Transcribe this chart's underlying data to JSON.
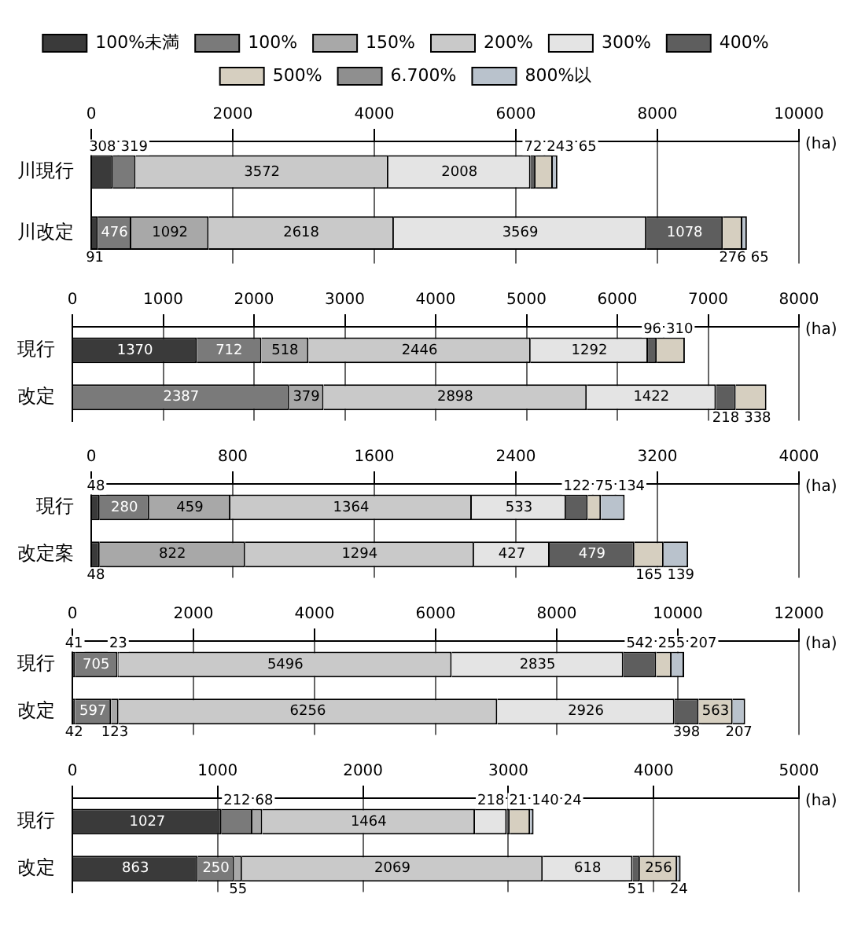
{
  "chart_data": [
    {
      "type": "bar",
      "orientation": "horizontal",
      "stacked": true,
      "legend": "top",
      "grid": "x",
      "data_labels": true,
      "xlabel": "(ha)",
      "categories": [
        "川現行",
        "川改定"
      ],
      "xlim": [
        0,
        10000
      ],
      "xticks": [
        0,
        2000,
        4000,
        6000,
        8000,
        10000
      ],
      "series": [
        {
          "name": "100%未満",
          "color": "#3a3a3a",
          "values": [
            308,
            91
          ]
        },
        {
          "name": "100%",
          "color": "#7a7a7a",
          "values": [
            319,
            476
          ]
        },
        {
          "name": "150%",
          "color": "#a8a8a8",
          "values": [
            null,
            1092
          ]
        },
        {
          "name": "200%",
          "color": "#c9c9c9",
          "values": [
            3572,
            2618
          ]
        },
        {
          "name": "300%",
          "color": "#e4e4e4",
          "values": [
            2008,
            3569
          ]
        },
        {
          "name": "400%",
          "color": "#5e5e5e",
          "values": [
            72,
            1078
          ]
        },
        {
          "name": "500%",
          "color": "#d6cfc0",
          "values": [
            243,
            276
          ]
        },
        {
          "name": "6.700%",
          "color": "#8f8f8f",
          "values": [
            null,
            null
          ]
        },
        {
          "name": "800%以",
          "color": "#b9c2cc",
          "values": [
            65,
            65
          ]
        }
      ]
    },
    {
      "type": "bar",
      "orientation": "horizontal",
      "stacked": true,
      "grid": "x",
      "data_labels": true,
      "xlabel": "(ha)",
      "categories": [
        "現行",
        "改定"
      ],
      "xlim": [
        0,
        8000
      ],
      "xticks": [
        0,
        1000,
        2000,
        3000,
        4000,
        5000,
        6000,
        7000,
        8000
      ],
      "series": [
        {
          "color": "#3a3a3a",
          "values": [
            1370,
            null
          ]
        },
        {
          "color": "#7a7a7a",
          "values": [
            712,
            2387
          ]
        },
        {
          "color": "#a8a8a8",
          "values": [
            518,
            379
          ]
        },
        {
          "color": "#c9c9c9",
          "values": [
            2446,
            2898
          ]
        },
        {
          "color": "#e4e4e4",
          "values": [
            1292,
            1422
          ]
        },
        {
          "color": "#5e5e5e",
          "values": [
            96,
            218
          ]
        },
        {
          "color": "#d6cfc0",
          "values": [
            310,
            338
          ]
        }
      ]
    },
    {
      "type": "bar",
      "orientation": "horizontal",
      "stacked": true,
      "grid": "x",
      "data_labels": true,
      "xlabel": "(ha)",
      "categories": [
        "現行",
        "改定案"
      ],
      "xlim": [
        0,
        4000
      ],
      "xticks": [
        0,
        800,
        1600,
        2400,
        3200,
        4000
      ],
      "series": [
        {
          "color": "#3a3a3a",
          "values": [
            48,
            48
          ]
        },
        {
          "color": "#7a7a7a",
          "values": [
            280,
            null
          ]
        },
        {
          "color": "#a8a8a8",
          "values": [
            459,
            822
          ]
        },
        {
          "color": "#c9c9c9",
          "values": [
            1364,
            1294
          ]
        },
        {
          "color": "#e4e4e4",
          "values": [
            533,
            427
          ]
        },
        {
          "color": "#5e5e5e",
          "values": [
            122,
            479
          ]
        },
        {
          "color": "#d6cfc0",
          "values": [
            75,
            165
          ]
        },
        {
          "color": "#b9c2cc",
          "values": [
            134,
            139
          ]
        }
      ]
    },
    {
      "type": "bar",
      "orientation": "horizontal",
      "stacked": true,
      "grid": "x",
      "data_labels": true,
      "xlabel": "(ha)",
      "categories": [
        "現行",
        "改定"
      ],
      "xlim": [
        0,
        12000
      ],
      "xticks": [
        0,
        2000,
        4000,
        6000,
        8000,
        10000,
        12000
      ],
      "series": [
        {
          "color": "#3a3a3a",
          "values": [
            41,
            42
          ]
        },
        {
          "color": "#7a7a7a",
          "values": [
            705,
            597
          ]
        },
        {
          "color": "#a8a8a8",
          "values": [
            23,
            123
          ]
        },
        {
          "color": "#c9c9c9",
          "values": [
            5496,
            6256
          ]
        },
        {
          "color": "#e4e4e4",
          "values": [
            2835,
            2926
          ]
        },
        {
          "color": "#5e5e5e",
          "values": [
            542,
            398
          ]
        },
        {
          "color": "#d6cfc0",
          "values": [
            255,
            563
          ]
        },
        {
          "color": "#b9c2cc",
          "values": [
            207,
            207
          ]
        }
      ]
    },
    {
      "type": "bar",
      "orientation": "horizontal",
      "stacked": true,
      "grid": "x",
      "data_labels": true,
      "xlabel": "(ha)",
      "categories": [
        "現行",
        "改定"
      ],
      "xlim": [
        0,
        5000
      ],
      "xticks": [
        0,
        1000,
        2000,
        3000,
        4000,
        5000
      ],
      "series": [
        {
          "color": "#3a3a3a",
          "values": [
            1027,
            863
          ]
        },
        {
          "color": "#7a7a7a",
          "values": [
            212,
            250
          ]
        },
        {
          "color": "#a8a8a8",
          "values": [
            68,
            55
          ]
        },
        {
          "color": "#c9c9c9",
          "values": [
            1464,
            2069
          ]
        },
        {
          "color": "#e4e4e4",
          "values": [
            218,
            618
          ]
        },
        {
          "color": "#5e5e5e",
          "values": [
            21,
            51
          ]
        },
        {
          "color": "#d6cfc0",
          "values": [
            140,
            256
          ]
        },
        {
          "color": "#b9c2cc",
          "values": [
            24,
            24
          ]
        }
      ]
    }
  ]
}
